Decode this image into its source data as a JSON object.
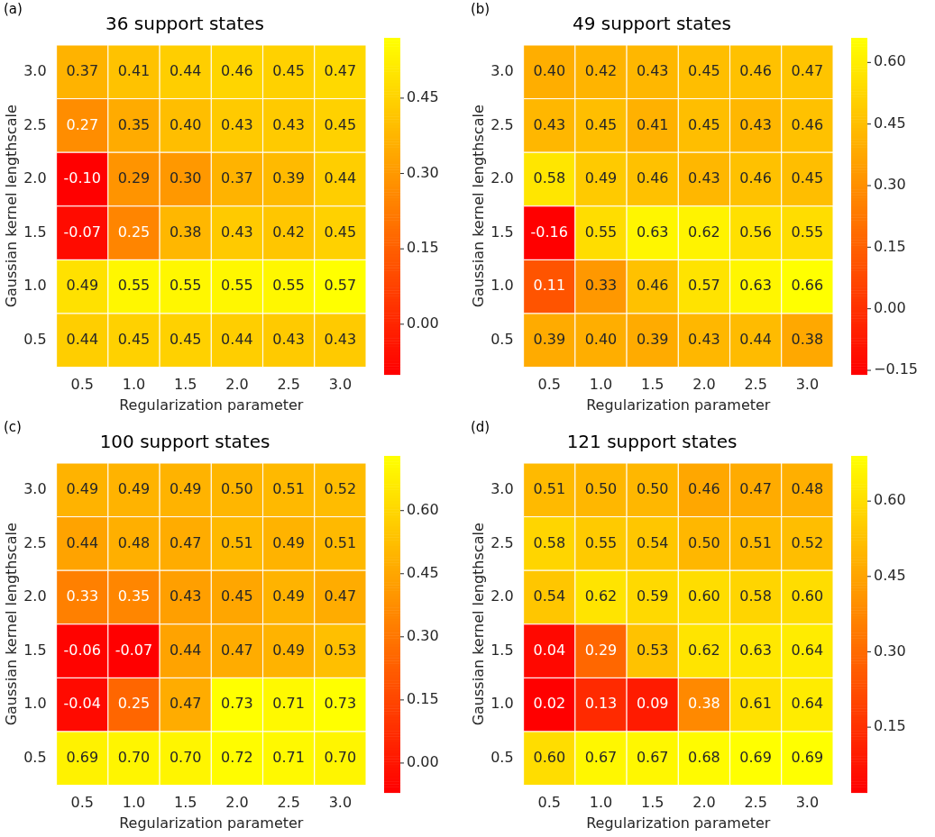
{
  "chart_data": [
    {
      "type": "heatmap",
      "title": "36 support states",
      "xlabel": "Regularization parameter",
      "ylabel": "Gaussian kernel lengthscale",
      "annotations": [
        "(a)"
      ],
      "data_labels": true,
      "categories": [
        "0.5",
        "1.0",
        "1.5",
        "2.0",
        "2.5",
        "3.0"
      ],
      "y_categories": [
        "3.0",
        "2.5",
        "2.0",
        "1.5",
        "1.0",
        "0.5"
      ],
      "cells": [
        [
          0.37,
          0.41,
          0.44,
          0.46,
          0.45,
          0.47
        ],
        [
          0.27,
          0.35,
          0.4,
          0.43,
          0.43,
          0.45
        ],
        [
          -0.1,
          0.29,
          0.3,
          0.37,
          0.39,
          0.44
        ],
        [
          -0.07,
          0.25,
          0.38,
          0.43,
          0.42,
          0.45
        ],
        [
          0.49,
          0.55,
          0.55,
          0.55,
          0.55,
          0.57
        ],
        [
          0.44,
          0.45,
          0.45,
          0.44,
          0.43,
          0.43
        ]
      ],
      "cell_labels": [
        [
          "0.37",
          "0.41",
          "0.44",
          "0.46",
          "0.45",
          "0.47"
        ],
        [
          "0.27",
          "0.35",
          "0.40",
          "0.43",
          "0.43",
          "0.45"
        ],
        [
          "-0.10",
          "0.29",
          "0.30",
          "0.37",
          "0.39",
          "0.44"
        ],
        [
          "-0.07",
          "0.25",
          "0.38",
          "0.43",
          "0.42",
          "0.45"
        ],
        [
          "0.49",
          "0.55",
          "0.55",
          "0.55",
          "0.55",
          "0.57"
        ],
        [
          "0.44",
          "0.45",
          "0.45",
          "0.44",
          "0.43",
          "0.43"
        ]
      ],
      "clim": [
        -0.1,
        0.57
      ],
      "cticks": [
        {
          "value": 0,
          "label": "0.00"
        },
        {
          "value": 0.15,
          "label": "0.15"
        },
        {
          "value": 0.3,
          "label": "0.30"
        },
        {
          "value": 0.45,
          "label": "0.45"
        }
      ]
    },
    {
      "type": "heatmap",
      "title": "49 support states",
      "xlabel": "Regularization parameter",
      "ylabel": "Gaussian kernel lengthscale",
      "annotations": [
        "(b)"
      ],
      "data_labels": true,
      "categories": [
        "0.5",
        "1.0",
        "1.5",
        "2.0",
        "2.5",
        "3.0"
      ],
      "y_categories": [
        "3.0",
        "2.5",
        "2.0",
        "1.5",
        "1.0",
        "0.5"
      ],
      "cells": [
        [
          0.4,
          0.42,
          0.43,
          0.45,
          0.46,
          0.47
        ],
        [
          0.43,
          0.45,
          0.41,
          0.45,
          0.43,
          0.46
        ],
        [
          0.58,
          0.49,
          0.46,
          0.43,
          0.46,
          0.45
        ],
        [
          -0.16,
          0.55,
          0.63,
          0.62,
          0.56,
          0.55
        ],
        [
          0.11,
          0.33,
          0.46,
          0.57,
          0.63,
          0.66
        ],
        [
          0.39,
          0.4,
          0.39,
          0.43,
          0.44,
          0.38
        ]
      ],
      "cell_labels": [
        [
          "0.40",
          "0.42",
          "0.43",
          "0.45",
          "0.46",
          "0.47"
        ],
        [
          "0.43",
          "0.45",
          "0.41",
          "0.45",
          "0.43",
          "0.46"
        ],
        [
          "0.58",
          "0.49",
          "0.46",
          "0.43",
          "0.46",
          "0.45"
        ],
        [
          "-0.16",
          "0.55",
          "0.63",
          "0.62",
          "0.56",
          "0.55"
        ],
        [
          "0.11",
          "0.33",
          "0.46",
          "0.57",
          "0.63",
          "0.66"
        ],
        [
          "0.39",
          "0.40",
          "0.39",
          "0.43",
          "0.44",
          "0.38"
        ]
      ],
      "clim": [
        -0.16,
        0.66
      ],
      "cticks": [
        {
          "value": -0.15,
          "label": "−0.15"
        },
        {
          "value": 0,
          "label": "0.00"
        },
        {
          "value": 0.15,
          "label": "0.15"
        },
        {
          "value": 0.3,
          "label": "0.30"
        },
        {
          "value": 0.45,
          "label": "0.45"
        },
        {
          "value": 0.6,
          "label": "0.60"
        }
      ]
    },
    {
      "type": "heatmap",
      "title": "100 support states",
      "xlabel": "Regularization parameter",
      "ylabel": "Gaussian kernel lengthscale",
      "annotations": [
        "(c)"
      ],
      "data_labels": true,
      "categories": [
        "0.5",
        "1.0",
        "1.5",
        "2.0",
        "2.5",
        "3.0"
      ],
      "y_categories": [
        "3.0",
        "2.5",
        "2.0",
        "1.5",
        "1.0",
        "0.5"
      ],
      "cells": [
        [
          0.49,
          0.49,
          0.49,
          0.5,
          0.51,
          0.52
        ],
        [
          0.44,
          0.48,
          0.47,
          0.51,
          0.49,
          0.51
        ],
        [
          0.33,
          0.35,
          0.43,
          0.45,
          0.49,
          0.47
        ],
        [
          -0.06,
          -0.07,
          0.44,
          0.47,
          0.49,
          0.53
        ],
        [
          -0.04,
          0.25,
          0.47,
          0.73,
          0.71,
          0.73
        ],
        [
          0.69,
          0.7,
          0.7,
          0.72,
          0.71,
          0.7
        ]
      ],
      "cell_labels": [
        [
          "0.49",
          "0.49",
          "0.49",
          "0.50",
          "0.51",
          "0.52"
        ],
        [
          "0.44",
          "0.48",
          "0.47",
          "0.51",
          "0.49",
          "0.51"
        ],
        [
          "0.33",
          "0.35",
          "0.43",
          "0.45",
          "0.49",
          "0.47"
        ],
        [
          "-0.06",
          "-0.07",
          "0.44",
          "0.47",
          "0.49",
          "0.53"
        ],
        [
          "-0.04",
          "0.25",
          "0.47",
          "0.73",
          "0.71",
          "0.73"
        ],
        [
          "0.69",
          "0.70",
          "0.70",
          "0.72",
          "0.71",
          "0.70"
        ]
      ],
      "clim": [
        -0.07,
        0.73
      ],
      "cticks": [
        {
          "value": 0,
          "label": "0.00"
        },
        {
          "value": 0.15,
          "label": "0.15"
        },
        {
          "value": 0.3,
          "label": "0.30"
        },
        {
          "value": 0.45,
          "label": "0.45"
        },
        {
          "value": 0.6,
          "label": "0.60"
        }
      ]
    },
    {
      "type": "heatmap",
      "title": "121 support states",
      "xlabel": "Regularization parameter",
      "ylabel": "Gaussian kernel lengthscale",
      "annotations": [
        "(d)"
      ],
      "data_labels": true,
      "categories": [
        "0.5",
        "1.0",
        "1.5",
        "2.0",
        "2.5",
        "3.0"
      ],
      "y_categories": [
        "3.0",
        "2.5",
        "2.0",
        "1.5",
        "1.0",
        "0.5"
      ],
      "cells": [
        [
          0.51,
          0.5,
          0.5,
          0.46,
          0.47,
          0.48
        ],
        [
          0.58,
          0.55,
          0.54,
          0.5,
          0.51,
          0.52
        ],
        [
          0.54,
          0.62,
          0.59,
          0.6,
          0.58,
          0.6
        ],
        [
          0.04,
          0.29,
          0.53,
          0.62,
          0.63,
          0.64
        ],
        [
          0.02,
          0.13,
          0.09,
          0.38,
          0.61,
          0.64
        ],
        [
          0.6,
          0.67,
          0.67,
          0.68,
          0.69,
          0.69
        ]
      ],
      "cell_labels": [
        [
          "0.51",
          "0.50",
          "0.50",
          "0.46",
          "0.47",
          "0.48"
        ],
        [
          "0.58",
          "0.55",
          "0.54",
          "0.50",
          "0.51",
          "0.52"
        ],
        [
          "0.54",
          "0.62",
          "0.59",
          "0.60",
          "0.58",
          "0.60"
        ],
        [
          "0.04",
          "0.29",
          "0.53",
          "0.62",
          "0.63",
          "0.64"
        ],
        [
          "0.02",
          "0.13",
          "0.09",
          "0.38",
          "0.61",
          "0.64"
        ],
        [
          "0.60",
          "0.67",
          "0.67",
          "0.68",
          "0.69",
          "0.69"
        ]
      ],
      "clim": [
        0.02,
        0.69
      ],
      "cticks": [
        {
          "value": 0.15,
          "label": "0.15"
        },
        {
          "value": 0.3,
          "label": "0.30"
        },
        {
          "value": 0.45,
          "label": "0.45"
        },
        {
          "value": 0.6,
          "label": "0.60"
        }
      ]
    }
  ]
}
